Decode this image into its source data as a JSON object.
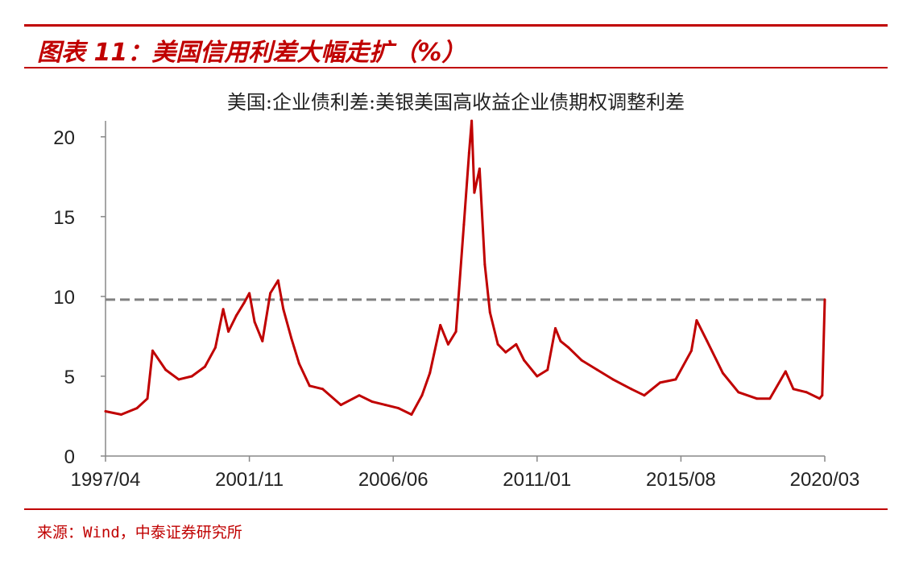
{
  "figure_title": "图表 11：美国信用利差大幅走扩（%）",
  "source": "来源：Wind，中泰证券研究所",
  "chart_data": {
    "type": "line",
    "title": "美国:企业债利差:美银美国高收益企业债期权调整利差",
    "xlabel": "",
    "ylabel": "",
    "ylim": [
      0,
      21
    ],
    "yticks": [
      0,
      5,
      10,
      15,
      20
    ],
    "xticks": [
      "1997/04",
      "2001/11",
      "2006/06",
      "2011/01",
      "2015/08",
      "2020/03"
    ],
    "grid": false,
    "line_color": "#c00000",
    "reference_line": {
      "value": 9.8,
      "style": "dashed",
      "color": "#808080"
    },
    "series": [
      {
        "x": [
          "1997/04",
          "1997/10",
          "1998/04",
          "1998/08",
          "1998/10",
          "1999/03",
          "1999/08",
          "2000/01",
          "2000/06",
          "2000/10",
          "2001/01",
          "2001/03",
          "2001/06",
          "2001/09",
          "2001/11",
          "2002/01",
          "2002/04",
          "2002/07",
          "2002/10",
          "2002/12",
          "2003/03",
          "2003/06",
          "2003/10",
          "2004/03",
          "2004/10",
          "2005/05",
          "2005/10",
          "2006/03",
          "2006/08",
          "2007/01",
          "2007/05",
          "2007/08",
          "2007/12",
          "2008/03",
          "2008/06",
          "2008/09",
          "2008/11",
          "2008/12",
          "2009/01",
          "2009/03",
          "2009/05",
          "2009/07",
          "2009/10",
          "2010/01",
          "2010/05",
          "2010/08",
          "2011/01",
          "2011/05",
          "2011/08",
          "2011/10",
          "2012/01",
          "2012/06",
          "2012/12",
          "2013/06",
          "2014/01",
          "2014/06",
          "2014/12",
          "2015/06",
          "2015/12",
          "2016/02",
          "2016/06",
          "2016/12",
          "2017/06",
          "2018/01",
          "2018/06",
          "2018/12",
          "2019/03",
          "2019/08",
          "2020/01",
          "2020/02",
          "2020/03"
        ],
        "values": [
          2.8,
          2.6,
          3.0,
          3.6,
          6.6,
          5.4,
          4.8,
          5.0,
          5.6,
          6.8,
          9.2,
          7.8,
          8.8,
          9.6,
          10.2,
          8.4,
          7.2,
          10.2,
          11.0,
          9.2,
          7.4,
          5.8,
          4.4,
          4.2,
          3.2,
          3.8,
          3.4,
          3.2,
          3.0,
          2.6,
          3.8,
          5.2,
          8.2,
          7.0,
          7.8,
          14.5,
          19.0,
          21.0,
          16.5,
          18.0,
          12.0,
          9.0,
          7.0,
          6.5,
          7.0,
          6.0,
          5.0,
          5.4,
          8.0,
          7.2,
          6.8,
          6.0,
          5.4,
          4.8,
          4.2,
          3.8,
          4.6,
          4.8,
          6.6,
          8.5,
          7.2,
          5.2,
          4.0,
          3.6,
          3.6,
          5.3,
          4.2,
          4.0,
          3.6,
          3.8,
          9.8
        ]
      }
    ]
  }
}
